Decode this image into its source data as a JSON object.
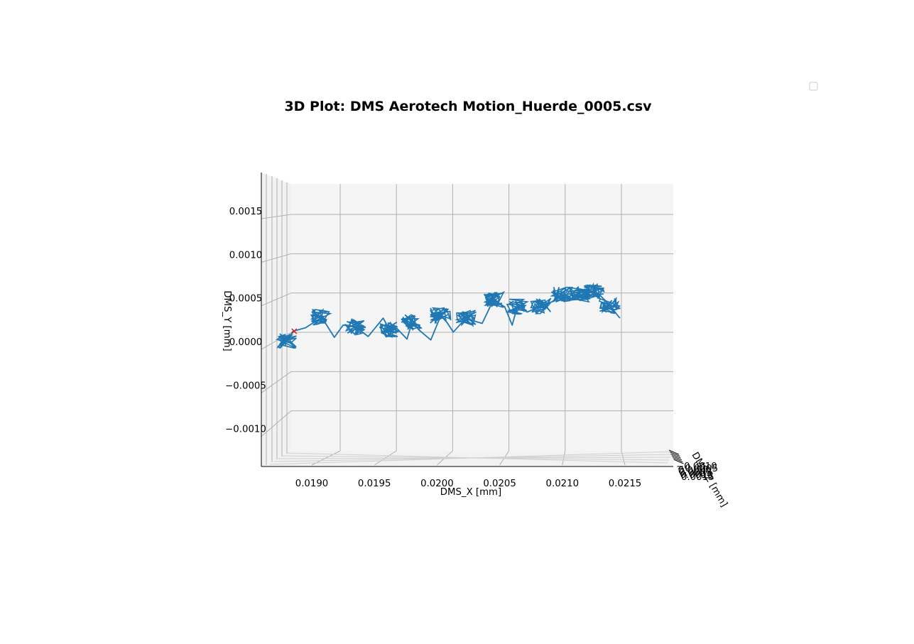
{
  "chart_data": {
    "type": "line",
    "title": "3D Plot: DMS Aerotech Motion_Huerde_0005.csv",
    "xlabel": "DMS_X [mm]",
    "ylabel": "DMS_Y [mm]",
    "zlabel": "DMS_Z [mm]",
    "x_ticks": [
      "0.0190",
      "0.0195",
      "0.0200",
      "0.0205",
      "0.0210",
      "0.0215"
    ],
    "y_ticks": [
      "−0.0010",
      "−0.0005",
      "0.0000",
      "0.0005",
      "0.0010",
      "0.0015"
    ],
    "z_ticks": [
      "−0.0010",
      "−0.0005",
      "0.0000",
      "0.0005",
      "0.0010",
      "0.0015"
    ],
    "xlim": [
      0.01856,
      0.02186
    ],
    "ylim": [
      -0.00143,
      0.00183
    ],
    "grid": true,
    "legend": "top-right, empty",
    "line_color": "#1f77b4",
    "marker_color": "#d62728",
    "series": [
      {
        "x": [
          0.0188,
          0.01885,
          0.01895,
          0.01908,
          0.01918,
          0.01925,
          0.01935,
          0.01945,
          0.01957,
          0.01962,
          0.01968,
          0.01976,
          0.0198,
          0.01986,
          0.01995,
          0.02003,
          0.02008,
          0.02013,
          0.02023,
          0.02029,
          0.02036,
          0.02045,
          0.02054,
          0.0206,
          0.02064,
          0.02072,
          0.02083,
          0.02094,
          0.021,
          0.02107,
          0.02114,
          0.02125,
          0.02131,
          0.02138,
          0.02146
        ],
        "y": [
          0.0,
          0.00011,
          0.00015,
          0.00027,
          4e-05,
          0.00018,
          0.00016,
          5e-05,
          0.00026,
          0.00013,
          0.00014,
          2e-05,
          0.00021,
          0.00012,
          1e-05,
          0.00029,
          0.00021,
          0.0001,
          0.00026,
          0.00023,
          0.0002,
          0.00047,
          0.00039,
          0.00018,
          0.00039,
          0.00033,
          0.0004,
          0.00046,
          0.00053,
          0.00047,
          0.00053,
          0.00056,
          0.00051,
          0.0004,
          0.00026
        ]
      },
      {
        "name": "",
        "x": [
          0.01886
        ],
        "y": [
          0.00011
        ]
      }
    ]
  }
}
